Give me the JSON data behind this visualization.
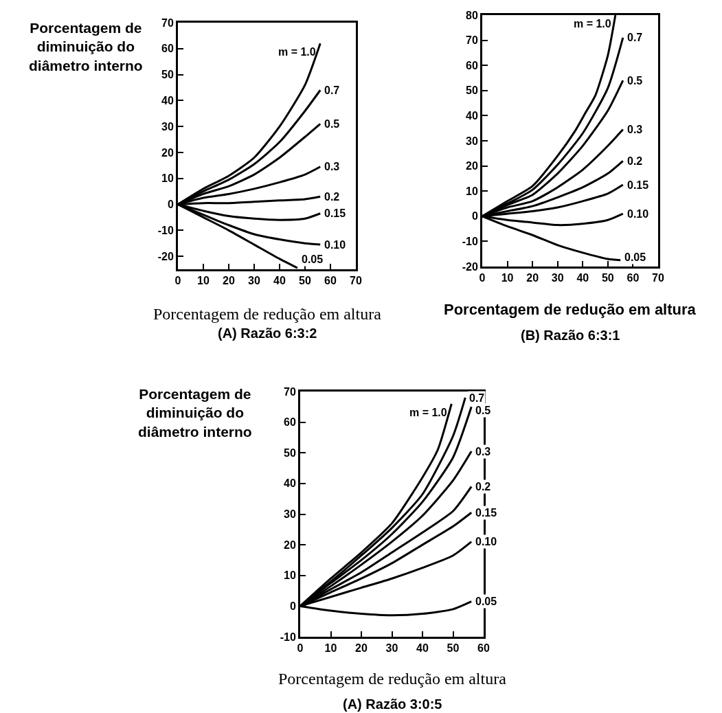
{
  "chart_data": [
    {
      "type": "line",
      "title": "(A) Razão 6:3:2",
      "xlabel": "Porcentagem de redução em altura",
      "ylabel": "Porcentagem de diminuição do diâmetro interno",
      "xlim": [
        0,
        70
      ],
      "ylim": [
        -25,
        70
      ],
      "xticks": [
        0,
        10,
        20,
        30,
        40,
        50,
        60,
        70
      ],
      "yticks": [
        -20,
        -10,
        0,
        10,
        20,
        30,
        40,
        50,
        60,
        70
      ],
      "legend": false,
      "grid": false,
      "line_style": "solid",
      "series": [
        {
          "name": "m = 1.0",
          "color": "#000000",
          "x": [
            0,
            10,
            20,
            30,
            40,
            50,
            56
          ],
          "values": [
            0,
            6,
            11,
            18,
            30,
            46,
            62
          ]
        },
        {
          "name": "0.7",
          "color": "#000000",
          "x": [
            0,
            10,
            20,
            30,
            40,
            50,
            56
          ],
          "values": [
            0,
            5,
            9.5,
            15.5,
            24,
            36,
            44
          ]
        },
        {
          "name": "0.5",
          "color": "#000000",
          "x": [
            0,
            10,
            20,
            30,
            40,
            50,
            56
          ],
          "values": [
            0,
            4,
            7,
            11.5,
            18,
            26,
            31
          ]
        },
        {
          "name": "0.3",
          "color": "#000000",
          "x": [
            0,
            10,
            20,
            30,
            40,
            50,
            56
          ],
          "values": [
            0,
            2.5,
            4,
            6,
            8.5,
            11.5,
            14.5
          ]
        },
        {
          "name": "0.2",
          "color": "#000000",
          "x": [
            0,
            10,
            20,
            30,
            40,
            50,
            56
          ],
          "values": [
            0,
            0.5,
            0.5,
            1,
            1.5,
            2,
            3
          ]
        },
        {
          "name": "0.15",
          "color": "#000000",
          "x": [
            0,
            10,
            20,
            30,
            40,
            50,
            56
          ],
          "values": [
            0,
            -2.5,
            -4.5,
            -5.5,
            -6,
            -5.5,
            -3.5
          ]
        },
        {
          "name": "0.10",
          "color": "#000000",
          "x": [
            0,
            10,
            20,
            30,
            40,
            50,
            56
          ],
          "values": [
            0,
            -4,
            -8,
            -11.5,
            -13.5,
            -15,
            -15.5
          ]
        },
        {
          "name": "0.05",
          "color": "#000000",
          "x": [
            0,
            10,
            20,
            30,
            40,
            47
          ],
          "values": [
            0,
            -5,
            -10,
            -15.5,
            -21,
            -24.5
          ]
        }
      ]
    },
    {
      "type": "line",
      "title": "(B) Razão 6:3:1",
      "xlabel": "Porcentagem de redução em altura",
      "xlim": [
        0,
        70
      ],
      "ylim": [
        -20,
        80
      ],
      "xticks": [
        0,
        10,
        20,
        30,
        40,
        50,
        60,
        70
      ],
      "yticks": [
        -20,
        -10,
        0,
        10,
        20,
        30,
        40,
        50,
        60,
        70,
        80
      ],
      "legend": false,
      "grid": false,
      "line_style": "solid",
      "series": [
        {
          "name": "m = 1.0",
          "color": "#000000",
          "x": [
            0,
            10,
            20,
            30,
            37,
            41,
            45,
            50,
            53
          ],
          "values": [
            0,
            6,
            12,
            24,
            34,
            41,
            48,
            64,
            80
          ]
        },
        {
          "name": "0.7",
          "color": "#000000",
          "x": [
            0,
            10,
            20,
            30,
            40,
            50,
            56
          ],
          "values": [
            0,
            5,
            10.5,
            20.5,
            33,
            51,
            71
          ]
        },
        {
          "name": "0.5",
          "color": "#000000",
          "x": [
            0,
            10,
            20,
            30,
            40,
            50,
            56
          ],
          "values": [
            0,
            4.5,
            8.5,
            17,
            28,
            42,
            54
          ]
        },
        {
          "name": "0.3",
          "color": "#000000",
          "x": [
            0,
            10,
            20,
            30,
            40,
            50,
            56
          ],
          "values": [
            0,
            3.5,
            6,
            11.5,
            18.5,
            28,
            34.5
          ]
        },
        {
          "name": "0.2",
          "color": "#000000",
          "x": [
            0,
            10,
            20,
            30,
            40,
            50,
            56
          ],
          "values": [
            0,
            2,
            4,
            7.5,
            11.5,
            17,
            22
          ]
        },
        {
          "name": "0.15",
          "color": "#000000",
          "x": [
            0,
            10,
            20,
            30,
            40,
            50,
            56
          ],
          "values": [
            0,
            1,
            2,
            3.5,
            6,
            9,
            12.5
          ]
        },
        {
          "name": "0.10",
          "color": "#000000",
          "x": [
            0,
            10,
            20,
            30,
            40,
            50,
            56
          ],
          "values": [
            0,
            -1.5,
            -2.5,
            -3.5,
            -3,
            -1.5,
            1
          ]
        },
        {
          "name": "0.05",
          "color": "#000000",
          "x": [
            0,
            10,
            20,
            30,
            40,
            50,
            55
          ],
          "values": [
            0,
            -4,
            -7.5,
            -11.5,
            -14.5,
            -17,
            -17.5
          ]
        }
      ]
    },
    {
      "type": "line",
      "title": "(A) Razão 3:0:5",
      "xlabel": "Porcentagem de redução em altura",
      "ylabel": "Porcentagem de diminuição do diâmetro interno",
      "xlim": [
        0,
        60
      ],
      "ylim": [
        -10,
        70
      ],
      "xticks": [
        0,
        10,
        20,
        30,
        40,
        50,
        60
      ],
      "yticks": [
        -10,
        0,
        10,
        20,
        30,
        40,
        50,
        60,
        70
      ],
      "legend": false,
      "grid": false,
      "line_style": "solid",
      "series": [
        {
          "name": "m = 1.0",
          "color": "#000000",
          "x": [
            0,
            10,
            20,
            30,
            40,
            45,
            49.5
          ],
          "values": [
            0,
            9,
            17.5,
            27,
            42,
            51,
            66
          ]
        },
        {
          "name": "0.7",
          "color": "#000000",
          "x": [
            0,
            10,
            20,
            30,
            40,
            50,
            54
          ],
          "values": [
            0,
            8,
            16.5,
            25.5,
            36.5,
            55.5,
            68
          ]
        },
        {
          "name": "0.5",
          "color": "#000000",
          "x": [
            0,
            10,
            20,
            30,
            40,
            50,
            56
          ],
          "values": [
            0,
            7.5,
            15,
            23.5,
            34,
            48.5,
            65
          ]
        },
        {
          "name": "0.3",
          "color": "#000000",
          "x": [
            0,
            10,
            20,
            30,
            40,
            50,
            56
          ],
          "values": [
            0,
            6.5,
            13.5,
            21,
            29.5,
            41,
            50.5
          ]
        },
        {
          "name": "0.2",
          "color": "#000000",
          "x": [
            0,
            10,
            20,
            30,
            40,
            50,
            56
          ],
          "values": [
            0,
            5.5,
            11,
            17.5,
            24,
            31,
            39
          ]
        },
        {
          "name": "0.15",
          "color": "#000000",
          "x": [
            0,
            10,
            20,
            30,
            40,
            50,
            56
          ],
          "values": [
            0,
            4.5,
            9,
            14,
            20,
            26,
            30.5
          ]
        },
        {
          "name": "0.10",
          "color": "#000000",
          "x": [
            0,
            10,
            20,
            30,
            40,
            50,
            56
          ],
          "values": [
            0,
            3,
            6,
            9,
            12.5,
            16.5,
            21
          ]
        },
        {
          "name": "0.05",
          "color": "#000000",
          "x": [
            0,
            10,
            20,
            30,
            40,
            50,
            56
          ],
          "values": [
            0,
            -1.5,
            -2.5,
            -3,
            -2.5,
            -1,
            1.5
          ]
        }
      ]
    }
  ]
}
